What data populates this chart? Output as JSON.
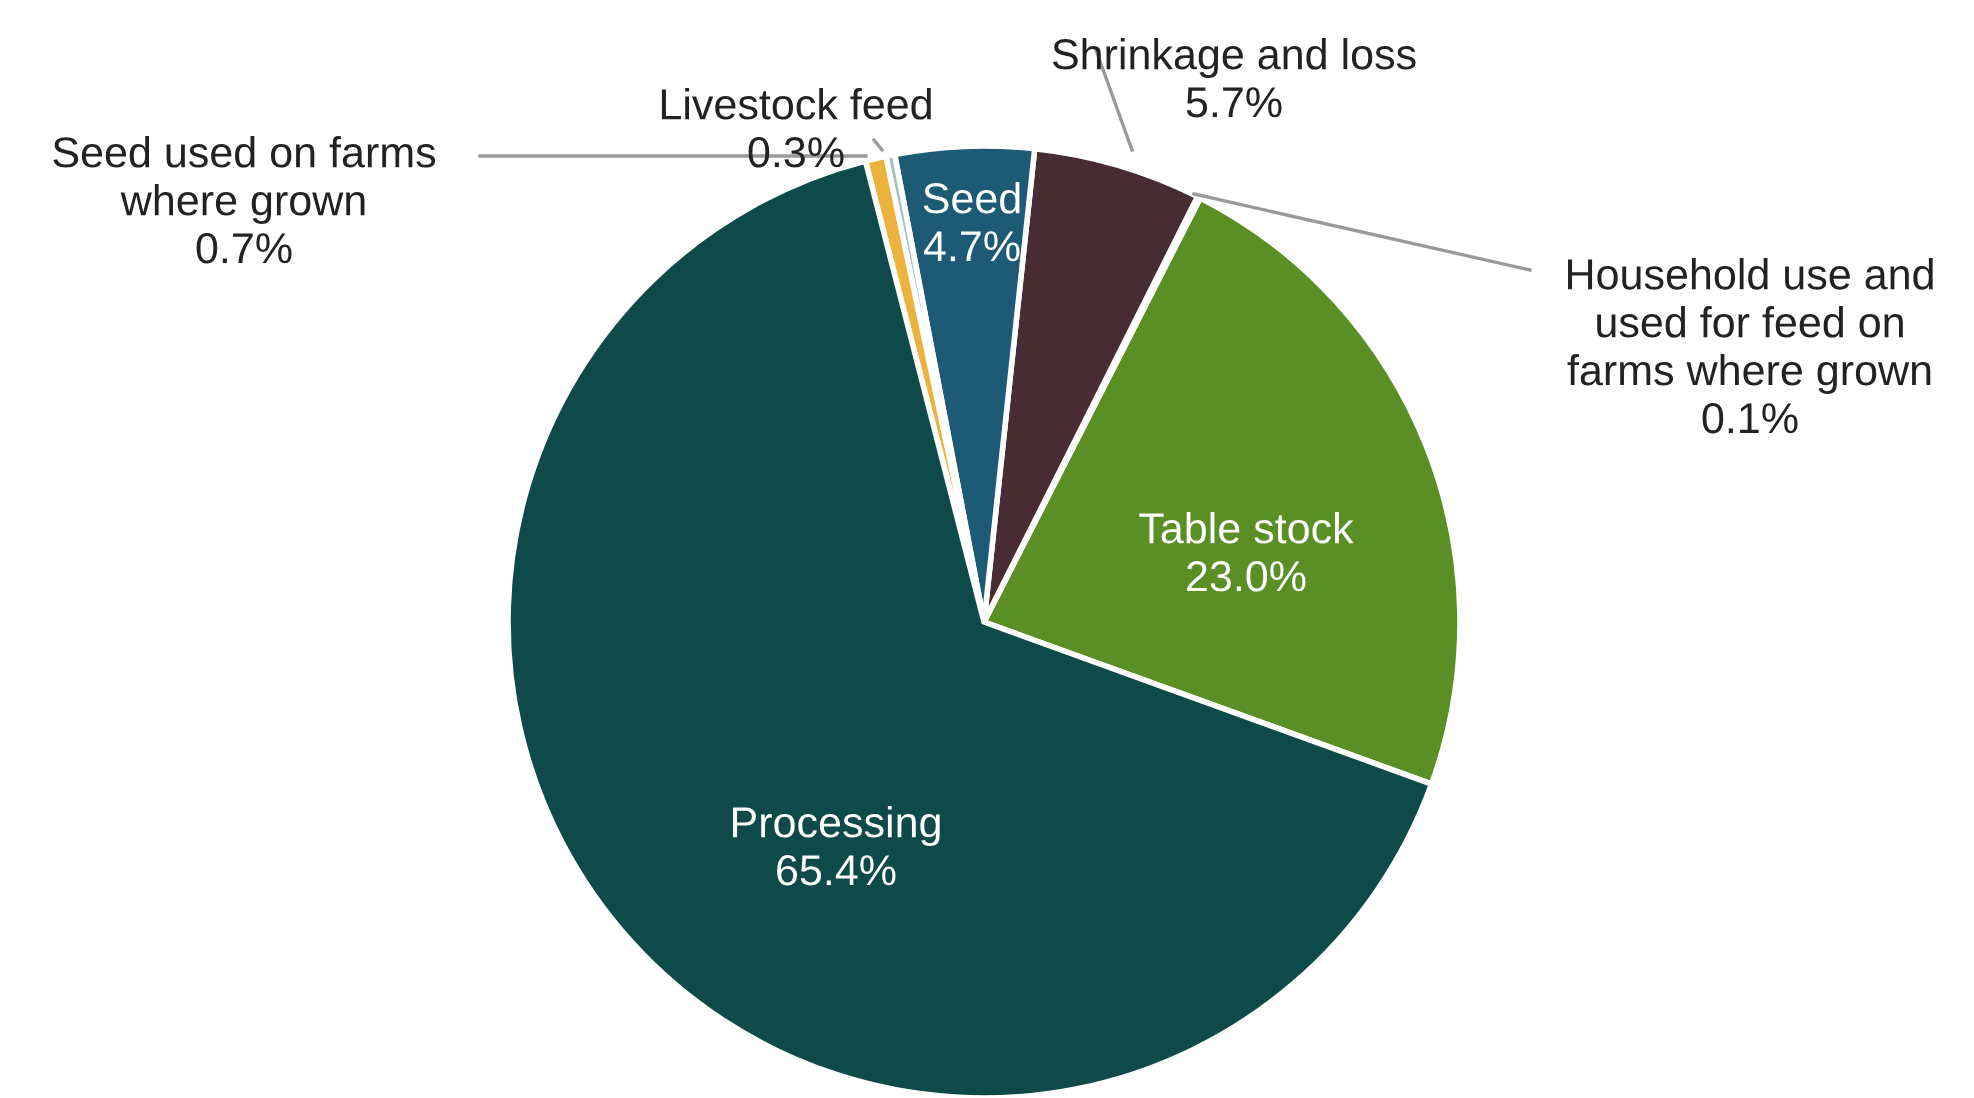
{
  "chart_data": {
    "type": "pie",
    "categories": [
      "Table stock",
      "Household use and used for feed on farms where grown",
      "Shrinkage and loss",
      "Seed",
      "Livestock feed",
      "Seed used on farms where grown",
      "Processing"
    ],
    "values": [
      23.0,
      0.1,
      5.7,
      4.7,
      0.3,
      0.7,
      65.4
    ],
    "value_labels": [
      "23.0%",
      "0.1%",
      "5.7%",
      "4.7%",
      "0.3%",
      "0.7%",
      "65.4%"
    ],
    "colors": [
      "#5a8f25",
      "#9aa5a8",
      "#472d33",
      "#1d5a76",
      "#a7c2c6",
      "#ebb33d",
      "#0f4a4a"
    ]
  }
}
